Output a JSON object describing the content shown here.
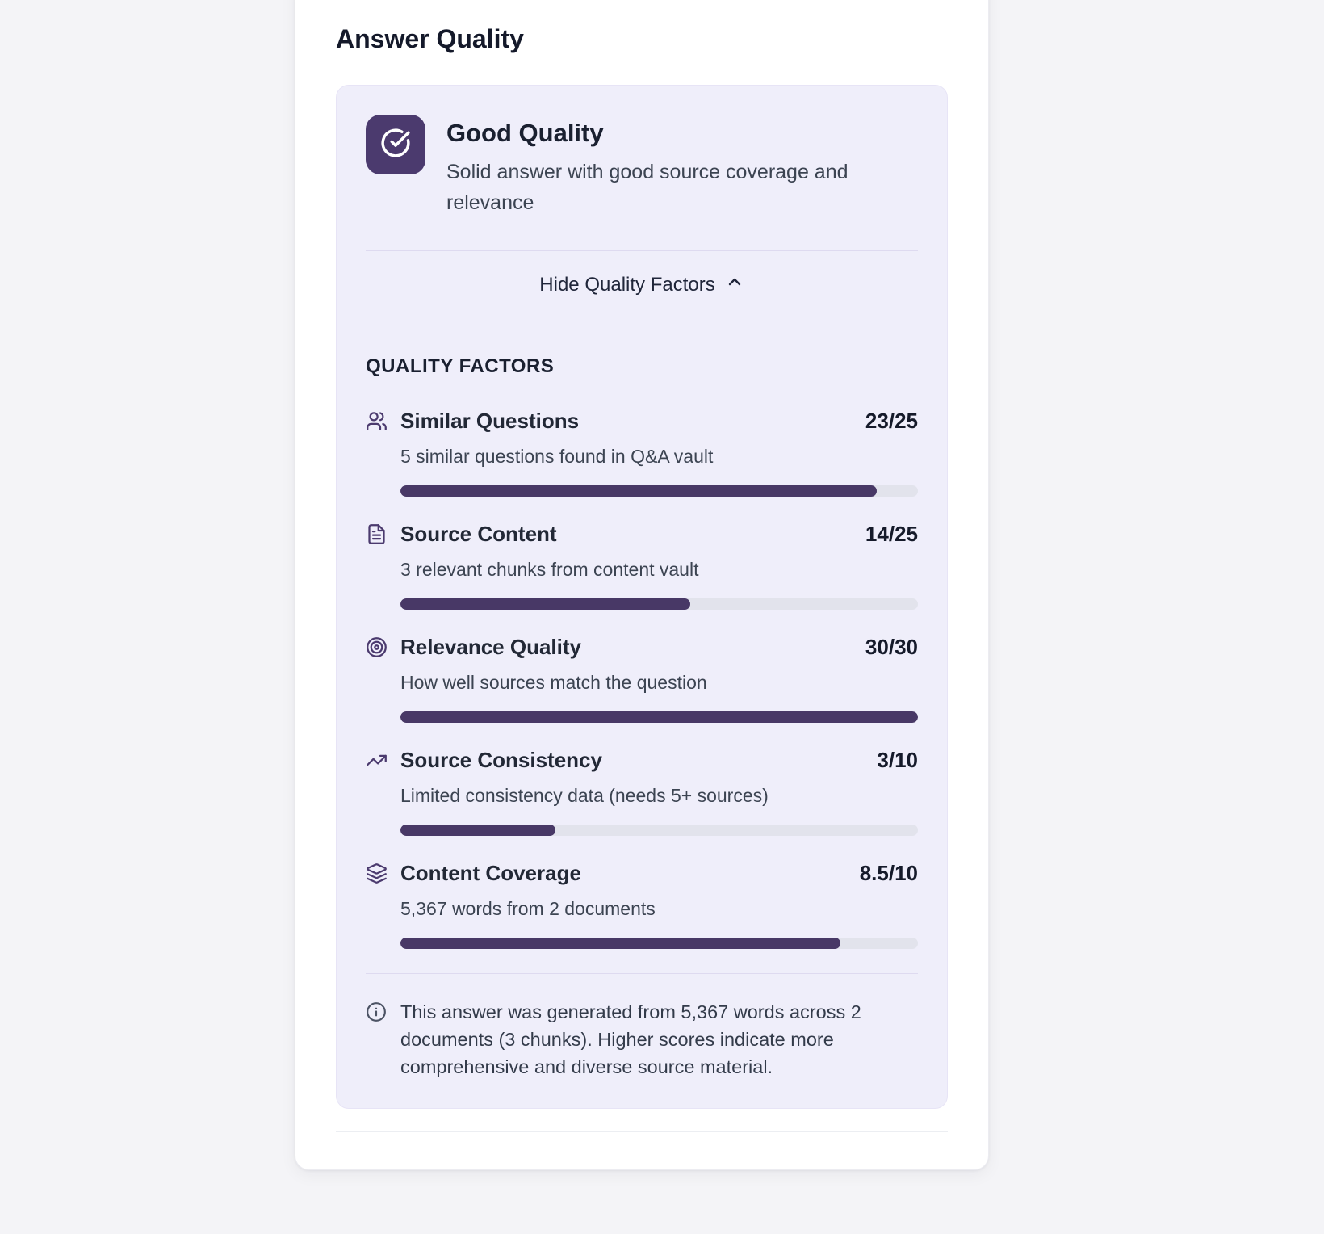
{
  "page": {
    "title": "Answer Quality"
  },
  "summary": {
    "icon": "check-circle-icon",
    "title": "Good Quality",
    "subtitle": "Solid answer with good source coverage and relevance",
    "toggle_label": "Hide Quality Factors",
    "toggle_state": "expanded"
  },
  "factors_section": {
    "heading": "QUALITY FACTORS",
    "factors": [
      {
        "icon": "users-icon",
        "label": "Similar Questions",
        "score": "23/25",
        "description": "5 similar questions found in Q&A vault",
        "percent": 92
      },
      {
        "icon": "document-icon",
        "label": "Source Content",
        "score": "14/25",
        "description": "3 relevant chunks from content vault",
        "percent": 56
      },
      {
        "icon": "target-icon",
        "label": "Relevance Quality",
        "score": "30/30",
        "description": "How well sources match the question",
        "percent": 100
      },
      {
        "icon": "trending-up-icon",
        "label": "Source Consistency",
        "score": "3/10",
        "description": "Limited consistency data (needs 5+ sources)",
        "percent": 30
      },
      {
        "icon": "layers-icon",
        "label": "Content Coverage",
        "score": "8.5/10",
        "description": "5,367 words from 2 documents",
        "percent": 85
      }
    ]
  },
  "footer_note": {
    "icon": "info-icon",
    "text": "This answer was generated from 5,367 words across 2 documents (3 chunks). Higher scores indicate more comprehensive and diverse source material."
  },
  "colors": {
    "accent": "#4b3a6e",
    "bar_fill": "#483866",
    "bar_track": "#e2e3ec",
    "panel_bg": "#efeefa",
    "card_bg": "#ffffff",
    "page_bg": "#f4f4f7"
  }
}
